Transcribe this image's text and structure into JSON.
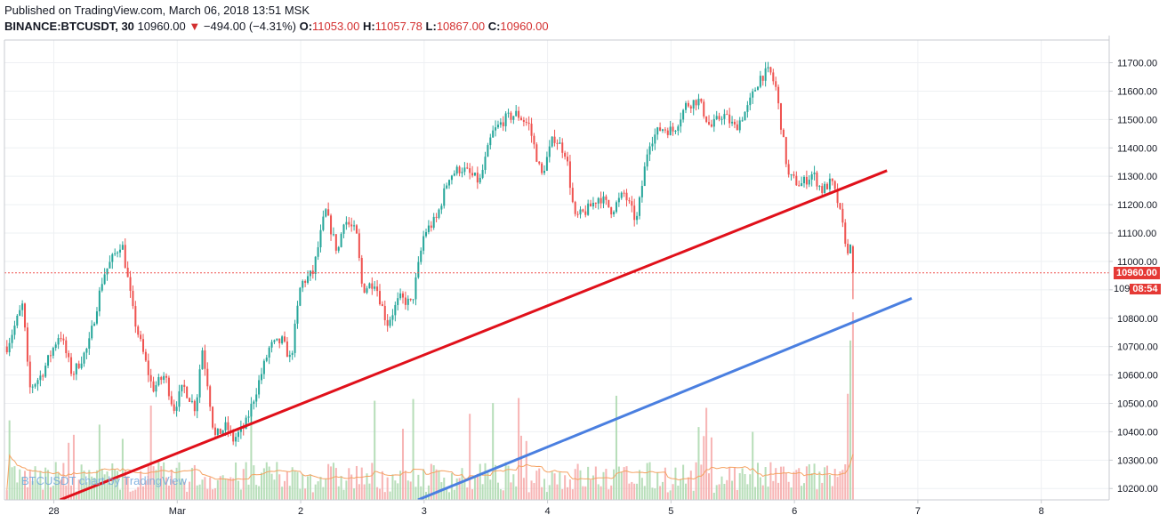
{
  "header": {
    "published": "Published on TradingView.com, March 06, 2018 13:51 MSK",
    "symbol": "BINANCE:BTCUSDT, 30",
    "last": "10960.00",
    "change": "−494.00 (−4.31%)",
    "o_label": "O:",
    "o": "11053.00",
    "h_label": "H:",
    "h": "11057.78",
    "l_label": "L:",
    "l": "10867.00",
    "c_label": "C:",
    "c": "10960.00",
    "down_arrow": "▼"
  },
  "price_tag": "10960.00",
  "countdown": "08:54",
  "countdown_prefix": "109",
  "watermark": "BTCUSDT chart by TradingView",
  "colors": {
    "up": "#26a69a",
    "down": "#ef5350",
    "volume_up": "#a5d6a7",
    "volume_down": "#f5a3a3",
    "trendline_red": "#e0101a",
    "trendline_blue": "#4a7fe0",
    "volume_ma": "#f5a262",
    "grid": "#eef0f3"
  },
  "chart_data": {
    "type": "candlestick",
    "x_ticks": [
      "28",
      "Mar",
      "2",
      "3",
      "4",
      "5",
      "6",
      "7",
      "8"
    ],
    "x_tick_days": [
      -1,
      0,
      1,
      2,
      3,
      4,
      5,
      6,
      7
    ],
    "y_ticks": [
      10200,
      10300,
      10400,
      10500,
      10600,
      10700,
      10800,
      10900,
      11000,
      11100,
      11200,
      11300,
      11400,
      11500,
      11600,
      11700
    ],
    "ylim": [
      10160,
      11780
    ],
    "xlim_days": [
      -1.4,
      7.55
    ],
    "last_price": 10960,
    "close_path": [
      [
        -1.38,
        10700
      ],
      [
        -1.25,
        10850
      ],
      [
        -1.2,
        10550
      ],
      [
        -1.1,
        10600
      ],
      [
        -0.95,
        10750
      ],
      [
        -0.85,
        10600
      ],
      [
        -0.72,
        10700
      ],
      [
        -0.6,
        10950
      ],
      [
        -0.45,
        11070
      ],
      [
        -0.35,
        10800
      ],
      [
        -0.2,
        10550
      ],
      [
        -0.1,
        10600
      ],
      [
        -0.03,
        10480
      ],
      [
        0.05,
        10560
      ],
      [
        0.15,
        10480
      ],
      [
        0.2,
        10700
      ],
      [
        0.25,
        10560
      ],
      [
        0.3,
        10380
      ],
      [
        0.4,
        10420
      ],
      [
        0.45,
        10370
      ],
      [
        0.55,
        10420
      ],
      [
        0.65,
        10560
      ],
      [
        0.75,
        10700
      ],
      [
        0.85,
        10720
      ],
      [
        0.92,
        10650
      ],
      [
        1.0,
        10920
      ],
      [
        1.1,
        10960
      ],
      [
        1.2,
        11180
      ],
      [
        1.3,
        11030
      ],
      [
        1.35,
        11150
      ],
      [
        1.45,
        11100
      ],
      [
        1.5,
        10900
      ],
      [
        1.6,
        10930
      ],
      [
        1.7,
        10780
      ],
      [
        1.8,
        10870
      ],
      [
        1.9,
        10850
      ],
      [
        2.0,
        11100
      ],
      [
        2.1,
        11150
      ],
      [
        2.2,
        11300
      ],
      [
        2.3,
        11330
      ],
      [
        2.45,
        11280
      ],
      [
        2.55,
        11450
      ],
      [
        2.65,
        11500
      ],
      [
        2.75,
        11520
      ],
      [
        2.85,
        11480
      ],
      [
        2.95,
        11300
      ],
      [
        3.05,
        11440
      ],
      [
        3.15,
        11380
      ],
      [
        3.22,
        11150
      ],
      [
        3.32,
        11180
      ],
      [
        3.42,
        11230
      ],
      [
        3.52,
        11180
      ],
      [
        3.62,
        11240
      ],
      [
        3.72,
        11140
      ],
      [
        3.82,
        11420
      ],
      [
        3.92,
        11470
      ],
      [
        4.02,
        11460
      ],
      [
        4.12,
        11550
      ],
      [
        4.22,
        11570
      ],
      [
        4.32,
        11470
      ],
      [
        4.42,
        11520
      ],
      [
        4.52,
        11470
      ],
      [
        4.62,
        11540
      ],
      [
        4.72,
        11650
      ],
      [
        4.8,
        11670
      ],
      [
        4.85,
        11610
      ],
      [
        4.95,
        11300
      ],
      [
        5.05,
        11270
      ],
      [
        5.15,
        11310
      ],
      [
        5.22,
        11250
      ],
      [
        5.3,
        11280
      ],
      [
        5.35,
        11210
      ],
      [
        5.42,
        11060
      ],
      [
        5.45,
        10960
      ]
    ],
    "red_trendline": {
      "from": [
        -0.95,
        10160
      ],
      "to": [
        5.75,
        11320
      ]
    },
    "blue_trendline": {
      "from": [
        1.95,
        10160
      ],
      "to": [
        5.95,
        10870
      ]
    }
  }
}
